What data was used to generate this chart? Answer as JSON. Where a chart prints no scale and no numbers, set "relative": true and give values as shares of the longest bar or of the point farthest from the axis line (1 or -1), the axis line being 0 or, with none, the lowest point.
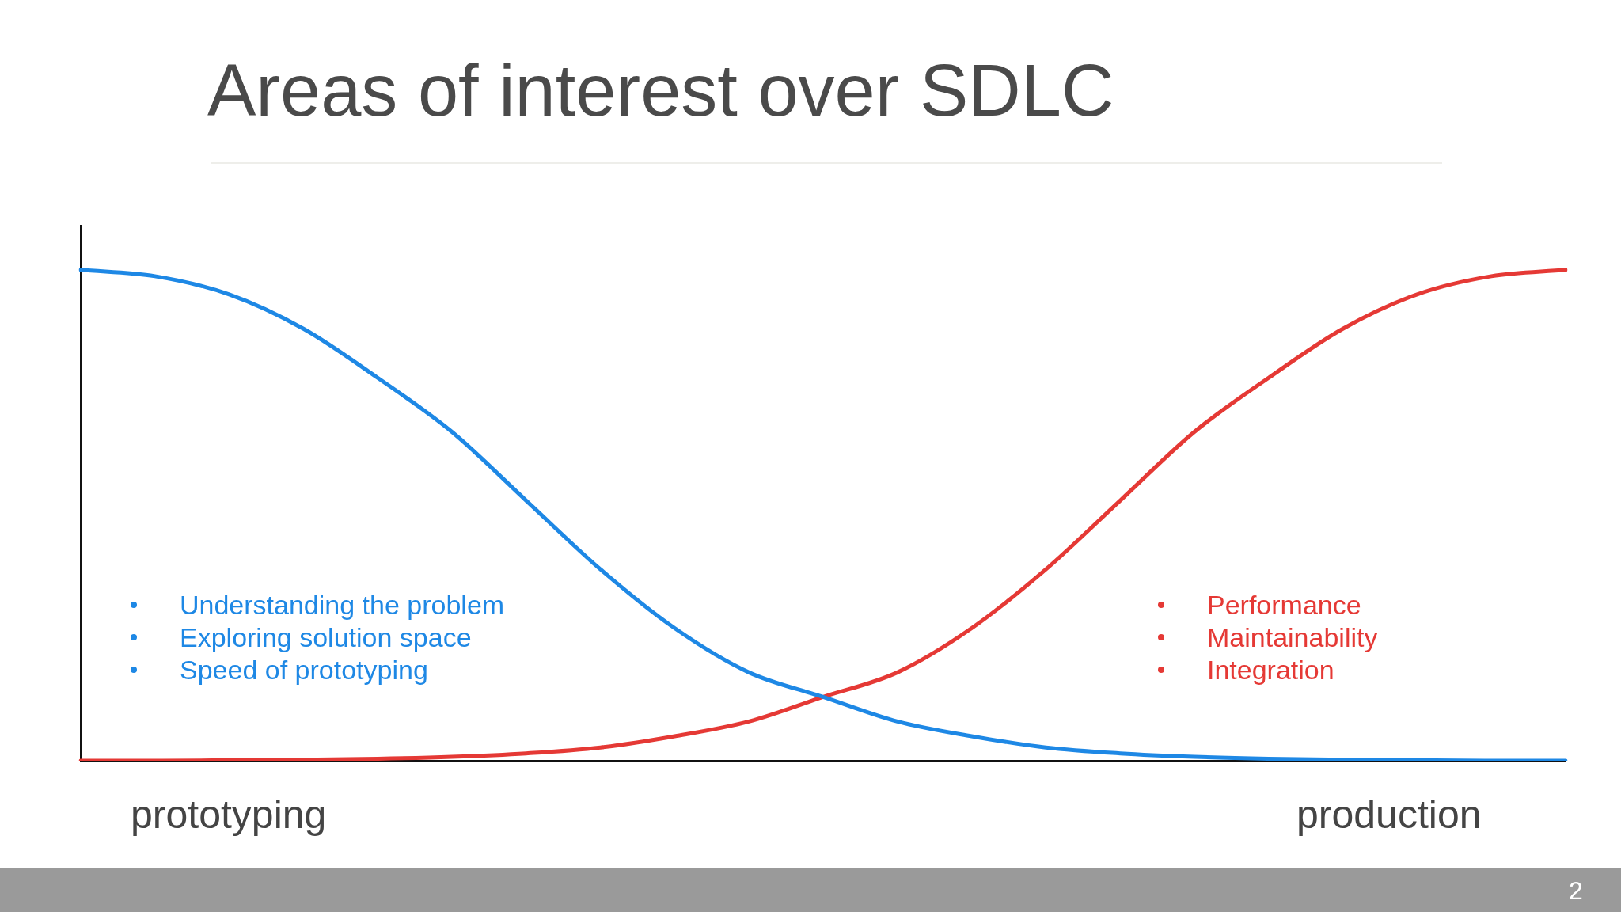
{
  "chart_data": {
    "type": "line",
    "title": "Areas of interest over SDLC",
    "relative": true,
    "grid": false,
    "legend": false,
    "marker": "none",
    "line_style": "solid",
    "categories": [
      null,
      null,
      null,
      null,
      null,
      null,
      null,
      null,
      null,
      null,
      null,
      null,
      null,
      null,
      null,
      null,
      null,
      null,
      null,
      null,
      null
    ],
    "series": [
      {
        "color": "#1e88e5",
        "values": [
          1.0,
          0.987,
          0.95,
          0.88,
          0.78,
          0.67,
          0.53,
          0.39,
          0.27,
          0.18,
          0.13,
          0.08,
          0.05,
          0.027,
          0.015,
          0.008,
          0.004,
          0.002,
          0.001,
          0,
          0
        ]
      },
      {
        "color": "#e53935",
        "values": [
          0,
          0,
          0.001,
          0.002,
          0.004,
          0.008,
          0.015,
          0.027,
          0.05,
          0.08,
          0.13,
          0.18,
          0.27,
          0.39,
          0.53,
          0.67,
          0.78,
          0.88,
          0.95,
          0.987,
          1.0
        ]
      }
    ],
    "annotations": [
      "Understanding the problem",
      "Exploring solution space",
      "Speed of prototyping",
      "Performance",
      "Maintainability",
      "Integration",
      "prototyping",
      "production",
      "2"
    ]
  }
}
